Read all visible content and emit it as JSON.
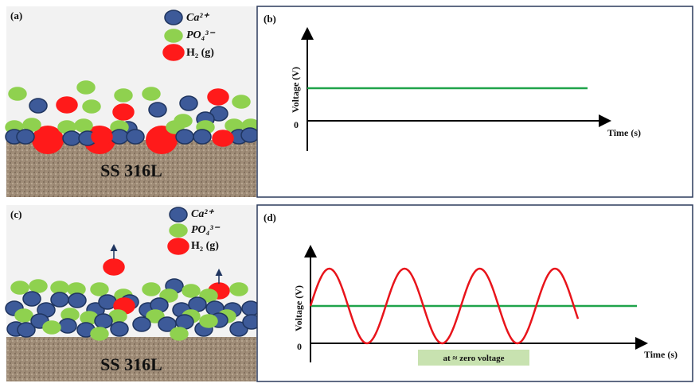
{
  "panels": [
    {
      "label": "(a)",
      "legend": [
        "Ca²⁺",
        "PO₄³⁻",
        "H₂ (g)"
      ],
      "substrate": "SS 316L"
    },
    {
      "label": "(b)",
      "y_axis_label": "Voltage (V)",
      "x_axis_label": "Time (s)",
      "origin_label": "0"
    },
    {
      "label": "(c)",
      "legend": [
        "Ca²⁺",
        "PO₄³⁻",
        "H₂ (g)"
      ],
      "substrate": "SS 316L"
    },
    {
      "label": "(d)",
      "y_axis_label": "Voltage (V)",
      "x_axis_label": "Time (s)",
      "origin_label": "0",
      "annotation": "at ≈ zero voltage"
    }
  ]
}
